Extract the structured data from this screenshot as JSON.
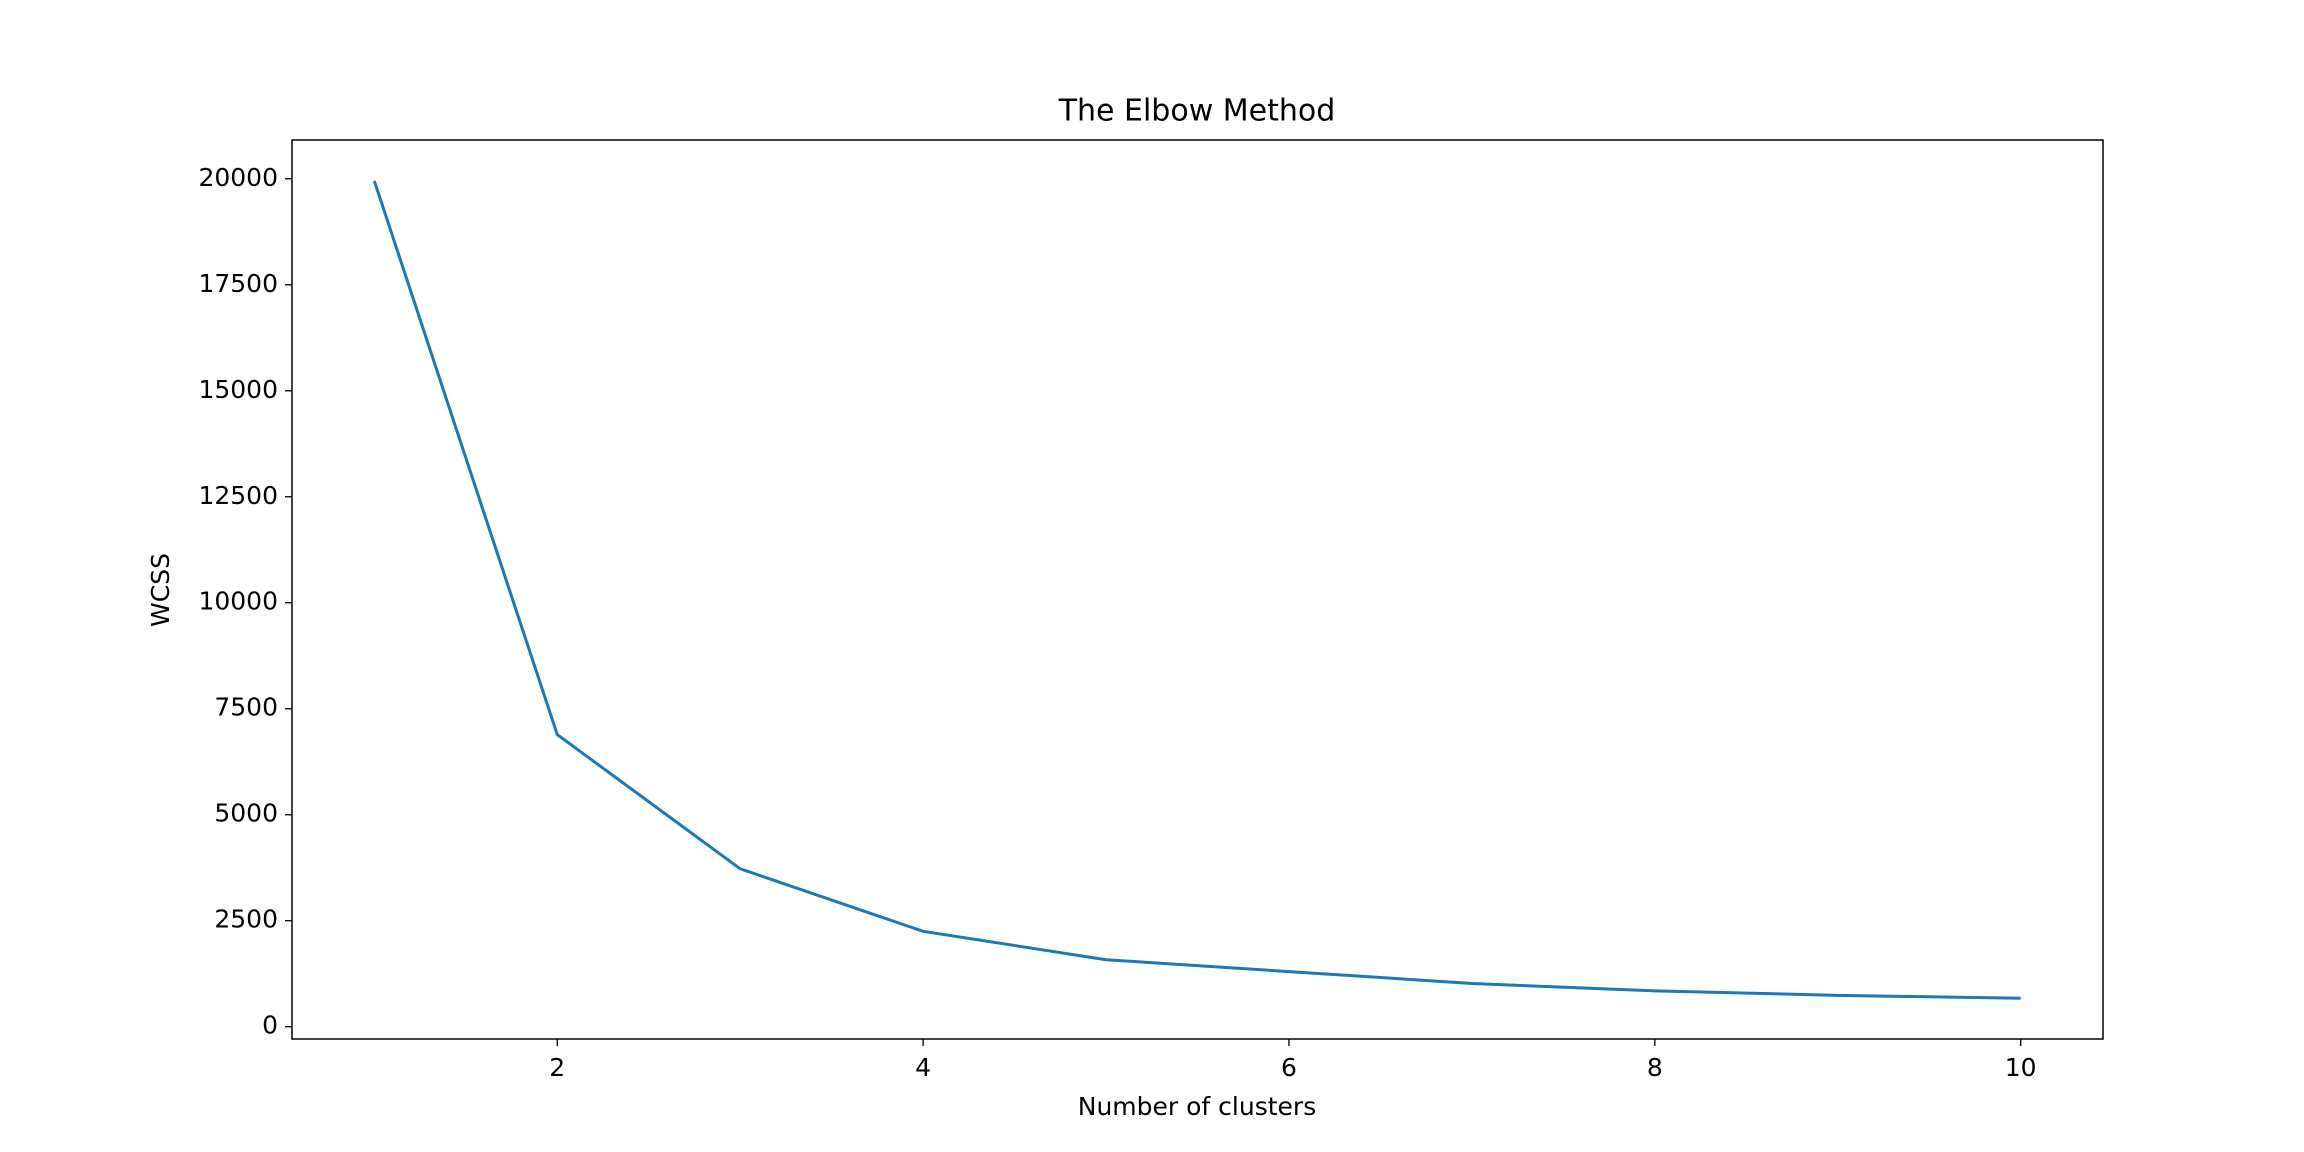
{
  "chart_data": {
    "type": "line",
    "title": "The Elbow Method",
    "x_label": "Number of clusters",
    "y_label": "WCSS",
    "x": [
      1,
      2,
      3,
      4,
      5,
      6,
      7,
      8,
      9,
      10
    ],
    "series": [
      {
        "name": "WCSS",
        "color": "#1f77b4",
        "values": [
          19950,
          6890,
          3725,
          2250,
          1580,
          1300,
          1020,
          845,
          740,
          670
        ]
      }
    ],
    "xlim": [
      0.55,
      10.45
    ],
    "xticks": [
      2,
      4,
      6,
      8,
      10
    ],
    "ylim": [
      -290,
      20915
    ],
    "yticks": [
      0,
      2500,
      5000,
      7500,
      10000,
      12500,
      15000,
      17500,
      20000
    ],
    "grid": false,
    "legend": false
  }
}
